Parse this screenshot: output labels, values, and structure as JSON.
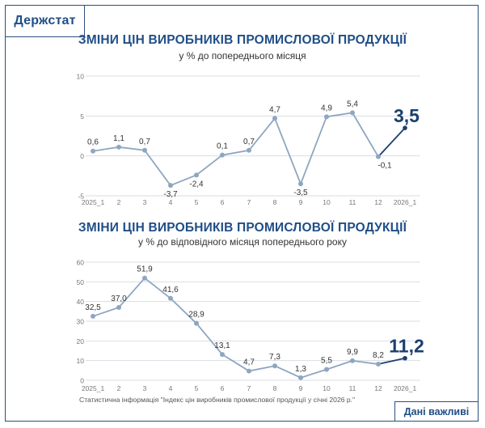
{
  "header": {
    "logo": "Держстат"
  },
  "chart_data": [
    {
      "type": "line",
      "title": "ЗМІНИ ЦІН ВИРОБНИКІВ ПРОМИСЛОВОЇ ПРОДУКЦІЇ",
      "subtitle": "у % до попереднього місяця",
      "categories": [
        "2025_1",
        "2",
        "3",
        "4",
        "5",
        "6",
        "7",
        "8",
        "9",
        "10",
        "11",
        "12",
        "2026_1"
      ],
      "values": [
        0.6,
        1.1,
        0.7,
        -3.7,
        -2.4,
        0.1,
        0.7,
        4.7,
        -3.5,
        4.9,
        5.4,
        -0.1,
        3.5
      ],
      "labels": [
        "0,6",
        "1,1",
        "0,7",
        "-3,7",
        "-2,4",
        "0,1",
        "0,7",
        "4,7",
        "-3,5",
        "4,9",
        "5,4",
        "-0,1",
        "3,5"
      ],
      "ylim": [
        -5,
        10
      ],
      "yticks": [
        -5,
        0,
        5,
        10
      ],
      "grid": true,
      "colors": {
        "line": "#8ea6c0",
        "highlight": "#1b3f6e"
      }
    },
    {
      "type": "line",
      "title": "ЗМІНИ ЦІН ВИРОБНИКІВ ПРОМИСЛОВОЇ ПРОДУКЦІЇ",
      "subtitle": "у % до відповідного місяця попереднього року",
      "categories": [
        "2025_1",
        "2",
        "3",
        "4",
        "5",
        "6",
        "7",
        "8",
        "9",
        "10",
        "11",
        "12",
        "2026_1"
      ],
      "values": [
        32.5,
        37.0,
        51.9,
        41.6,
        28.9,
        13.1,
        4.7,
        7.3,
        1.3,
        5.5,
        9.9,
        8.2,
        11.2
      ],
      "labels": [
        "32,5",
        "37,0",
        "51,9",
        "41,6",
        "28,9",
        "13,1",
        "4,7",
        "7,3",
        "1,3",
        "5,5",
        "9,9",
        "8,2",
        "11,2"
      ],
      "ylim": [
        0,
        60
      ],
      "yticks": [
        0,
        10,
        20,
        30,
        40,
        50,
        60
      ],
      "grid": true,
      "colors": {
        "line": "#8ea6c0",
        "highlight": "#1b3f6e"
      }
    }
  ],
  "footer": {
    "source": "Статистична інформація \"Індекс цін виробників промислової продукції у січні 2026 р.\"",
    "badge": "Дані важливі"
  }
}
